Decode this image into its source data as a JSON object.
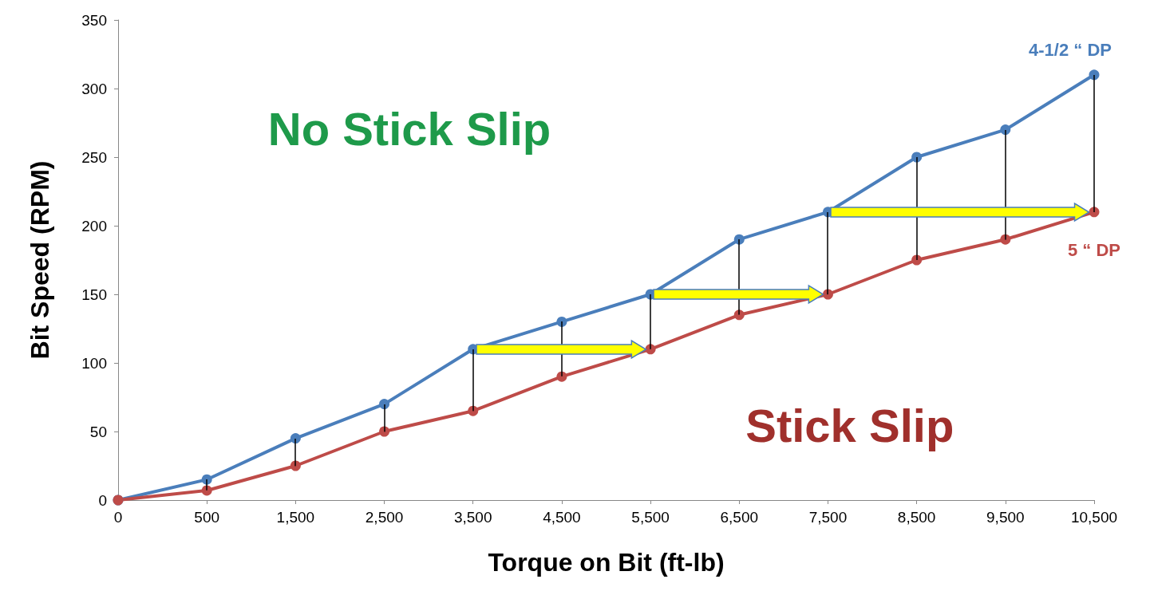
{
  "chart_data": {
    "type": "line",
    "xlabel": "Torque on Bit (ft-lb)",
    "ylabel": "Bit Speed (RPM)",
    "categories": [
      "0",
      "500",
      "1,500",
      "2,500",
      "3,500",
      "4,500",
      "5,500",
      "6,500",
      "7,500",
      "8,500",
      "9,500",
      "10,500"
    ],
    "series": [
      {
        "name": "4-1/2 “ DP",
        "color": "#4a7ebb",
        "values": [
          0,
          15,
          45,
          70,
          110,
          130,
          150,
          190,
          210,
          250,
          270,
          310
        ]
      },
      {
        "name": "5 “ DP",
        "color": "#be4b48",
        "values": [
          0,
          7,
          25,
          50,
          65,
          90,
          110,
          135,
          150,
          175,
          190,
          210
        ]
      }
    ],
    "ylim": [
      0,
      350
    ],
    "yticks": [
      0,
      50,
      100,
      150,
      200,
      250,
      300,
      350
    ],
    "grid": false,
    "legend": false,
    "marker": "circle",
    "line_style": "solid",
    "annotations": [
      "No Stick Slip",
      "Stick Slip"
    ]
  }
}
